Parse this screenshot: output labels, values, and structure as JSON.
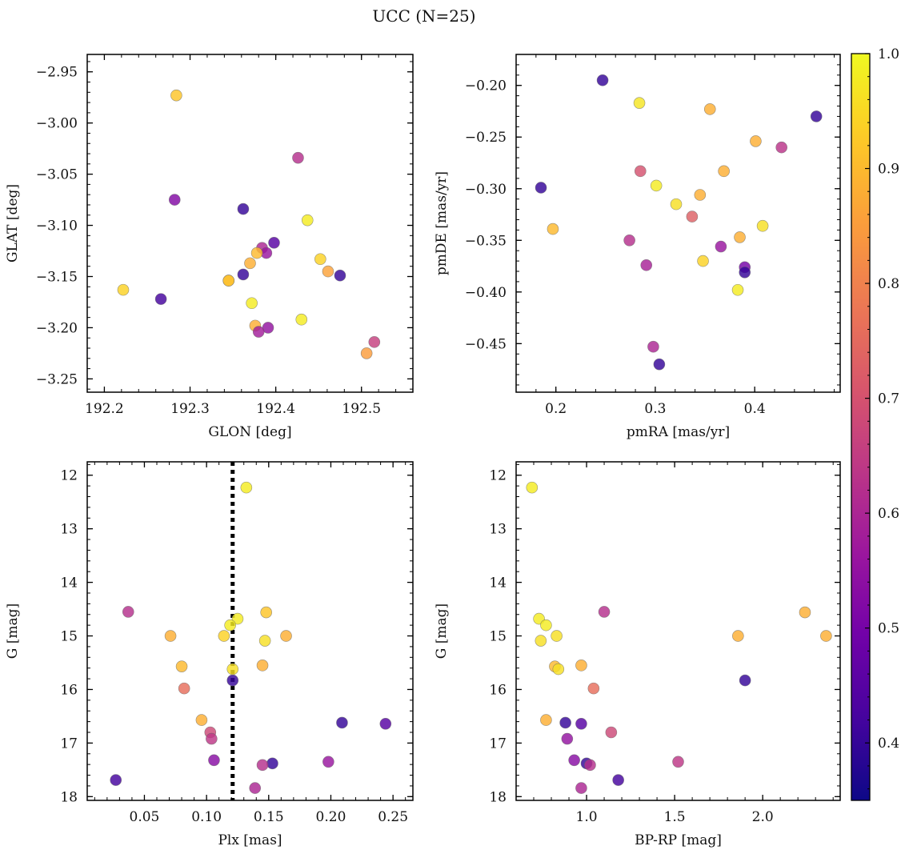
{
  "figure": {
    "title": "UCC (N=25)",
    "cmap": [
      "#0d0887",
      "#46039f",
      "#7201a8",
      "#9c179e",
      "#bd3786",
      "#d8576b",
      "#ed7953",
      "#fb9f3a",
      "#fdca26",
      "#f0f921"
    ]
  },
  "colorbar": {
    "vmin": 0.35,
    "vmax": 1.0,
    "ticks": [
      0.4,
      0.5,
      0.6,
      0.7,
      0.8,
      0.9,
      1.0
    ],
    "tick_labels": [
      "0.4",
      "0.5",
      "0.6",
      "0.7",
      "0.8",
      "0.9",
      "1.0"
    ]
  },
  "chart_data": [
    {
      "type": "scatter",
      "xlabel": "GLON [deg]",
      "ylabel": "GLAT [deg]",
      "xlim": [
        192.18,
        192.56
      ],
      "ylim": [
        -3.263,
        -2.933
      ],
      "xticks": [
        192.2,
        192.3,
        192.4,
        192.5
      ],
      "xtick_labels": [
        "192.2",
        "192.3",
        "192.4",
        "192.5"
      ],
      "yticks": [
        -3.25,
        -3.2,
        -3.15,
        -3.1,
        -3.05,
        -3.0,
        -2.95
      ],
      "ytick_labels": [
        "−3.25",
        "−3.20",
        "−3.15",
        "−3.10",
        "−3.05",
        "−3.00",
        "−2.95"
      ],
      "invert_y": false,
      "points": [
        {
          "x": 192.284,
          "y": -2.973,
          "c": 0.92
        },
        {
          "x": 192.426,
          "y": -3.034,
          "c": 0.62
        },
        {
          "x": 192.282,
          "y": -3.075,
          "c": 0.52
        },
        {
          "x": 192.362,
          "y": -3.084,
          "c": 0.4
        },
        {
          "x": 192.437,
          "y": -3.095,
          "c": 0.98
        },
        {
          "x": 192.398,
          "y": -3.117,
          "c": 0.45
        },
        {
          "x": 192.384,
          "y": -3.122,
          "c": 0.6
        },
        {
          "x": 192.389,
          "y": -3.127,
          "c": 0.56
        },
        {
          "x": 192.378,
          "y": -3.127,
          "c": 0.9
        },
        {
          "x": 192.452,
          "y": -3.133,
          "c": 0.94
        },
        {
          "x": 192.37,
          "y": -3.137,
          "c": 0.88
        },
        {
          "x": 192.461,
          "y": -3.145,
          "c": 0.86
        },
        {
          "x": 192.362,
          "y": -3.148,
          "c": 0.4
        },
        {
          "x": 192.475,
          "y": -3.149,
          "c": 0.4
        },
        {
          "x": 192.345,
          "y": -3.154,
          "c": 0.96
        },
        {
          "x": 192.345,
          "y": -3.154,
          "c": 0.9
        },
        {
          "x": 192.222,
          "y": -3.163,
          "c": 0.94
        },
        {
          "x": 192.266,
          "y": -3.172,
          "c": 0.42
        },
        {
          "x": 192.372,
          "y": -3.176,
          "c": 0.98
        },
        {
          "x": 192.43,
          "y": -3.192,
          "c": 0.98
        },
        {
          "x": 192.376,
          "y": -3.198,
          "c": 0.88
        },
        {
          "x": 192.391,
          "y": -3.2,
          "c": 0.55
        },
        {
          "x": 192.38,
          "y": -3.204,
          "c": 0.58
        },
        {
          "x": 192.515,
          "y": -3.214,
          "c": 0.66
        },
        {
          "x": 192.506,
          "y": -3.225,
          "c": 0.85
        }
      ]
    },
    {
      "type": "scatter",
      "xlabel": "pmRA [mas/yr]",
      "ylabel": "pmDE [mas/yr]",
      "xlim": [
        0.16,
        0.486
      ],
      "ylim": [
        -0.497,
        -0.17
      ],
      "xticks": [
        0.2,
        0.3,
        0.4
      ],
      "xtick_labels": [
        "0.2",
        "0.3",
        "0.4"
      ],
      "yticks": [
        -0.45,
        -0.4,
        -0.35,
        -0.3,
        -0.25,
        -0.2
      ],
      "ytick_labels": [
        "−0.45",
        "−0.40",
        "−0.35",
        "−0.30",
        "−0.25",
        "−0.20"
      ],
      "invert_y": false,
      "points": [
        {
          "x": 0.247,
          "y": -0.195,
          "c": 0.4
        },
        {
          "x": 0.284,
          "y": -0.217,
          "c": 0.97
        },
        {
          "x": 0.355,
          "y": -0.223,
          "c": 0.88
        },
        {
          "x": 0.462,
          "y": -0.23,
          "c": 0.4
        },
        {
          "x": 0.401,
          "y": -0.254,
          "c": 0.88
        },
        {
          "x": 0.427,
          "y": -0.26,
          "c": 0.63
        },
        {
          "x": 0.285,
          "y": -0.283,
          "c": 0.7
        },
        {
          "x": 0.369,
          "y": -0.283,
          "c": 0.88
        },
        {
          "x": 0.301,
          "y": -0.297,
          "c": 0.98
        },
        {
          "x": 0.185,
          "y": -0.299,
          "c": 0.4
        },
        {
          "x": 0.345,
          "y": -0.306,
          "c": 0.88
        },
        {
          "x": 0.321,
          "y": -0.315,
          "c": 0.96
        },
        {
          "x": 0.337,
          "y": -0.327,
          "c": 0.73
        },
        {
          "x": 0.408,
          "y": -0.336,
          "c": 0.96
        },
        {
          "x": 0.197,
          "y": -0.339,
          "c": 0.9
        },
        {
          "x": 0.385,
          "y": -0.347,
          "c": 0.88
        },
        {
          "x": 0.274,
          "y": -0.35,
          "c": 0.62
        },
        {
          "x": 0.366,
          "y": -0.356,
          "c": 0.56
        },
        {
          "x": 0.348,
          "y": -0.37,
          "c": 0.94
        },
        {
          "x": 0.291,
          "y": -0.374,
          "c": 0.59
        },
        {
          "x": 0.39,
          "y": -0.376,
          "c": 0.5
        },
        {
          "x": 0.39,
          "y": -0.381,
          "c": 0.4
        },
        {
          "x": 0.383,
          "y": -0.398,
          "c": 0.98
        },
        {
          "x": 0.298,
          "y": -0.453,
          "c": 0.6
        },
        {
          "x": 0.304,
          "y": -0.47,
          "c": 0.4
        }
      ]
    },
    {
      "type": "scatter",
      "xlabel": "Plx [mas]",
      "ylabel": "G [mag]",
      "xlim": [
        0.004,
        0.266
      ],
      "ylim": [
        18.07,
        11.75
      ],
      "xticks": [
        0.05,
        0.1,
        0.15,
        0.2,
        0.25
      ],
      "xtick_labels": [
        "0.05",
        "0.10",
        "0.15",
        "0.20",
        "0.25"
      ],
      "yticks": [
        12,
        13,
        14,
        15,
        16,
        17,
        18
      ],
      "ytick_labels": [
        "12",
        "13",
        "14",
        "15",
        "16",
        "17",
        "18"
      ],
      "invert_y": true,
      "vline": 0.121,
      "points": [
        {
          "x": 0.132,
          "y": 12.23,
          "c": 0.98
        },
        {
          "x": 0.037,
          "y": 14.55,
          "c": 0.62
        },
        {
          "x": 0.125,
          "y": 14.68,
          "c": 0.98
        },
        {
          "x": 0.148,
          "y": 14.56,
          "c": 0.92
        },
        {
          "x": 0.119,
          "y": 14.8,
          "c": 0.98
        },
        {
          "x": 0.071,
          "y": 15.0,
          "c": 0.88
        },
        {
          "x": 0.114,
          "y": 15.0,
          "c": 0.94
        },
        {
          "x": 0.164,
          "y": 15.0,
          "c": 0.88
        },
        {
          "x": 0.147,
          "y": 15.09,
          "c": 0.96
        },
        {
          "x": 0.08,
          "y": 15.57,
          "c": 0.9
        },
        {
          "x": 0.145,
          "y": 15.55,
          "c": 0.88
        },
        {
          "x": 0.121,
          "y": 15.62,
          "c": 0.96
        },
        {
          "x": 0.121,
          "y": 15.83,
          "c": 0.4
        },
        {
          "x": 0.082,
          "y": 15.98,
          "c": 0.76
        },
        {
          "x": 0.096,
          "y": 16.57,
          "c": 0.88
        },
        {
          "x": 0.209,
          "y": 16.62,
          "c": 0.4
        },
        {
          "x": 0.244,
          "y": 16.64,
          "c": 0.45
        },
        {
          "x": 0.103,
          "y": 16.8,
          "c": 0.68
        },
        {
          "x": 0.104,
          "y": 16.92,
          "c": 0.64
        },
        {
          "x": 0.106,
          "y": 17.32,
          "c": 0.53
        },
        {
          "x": 0.198,
          "y": 17.35,
          "c": 0.56
        },
        {
          "x": 0.153,
          "y": 17.38,
          "c": 0.4
        },
        {
          "x": 0.145,
          "y": 17.41,
          "c": 0.62
        },
        {
          "x": 0.027,
          "y": 17.69,
          "c": 0.42
        },
        {
          "x": 0.139,
          "y": 17.84,
          "c": 0.6
        }
      ]
    },
    {
      "type": "scatter",
      "xlabel": "BP-RP [mag]",
      "ylabel": "G [mag]",
      "xlim": [
        0.6,
        2.44
      ],
      "ylim": [
        18.07,
        11.75
      ],
      "xticks": [
        1.0,
        1.5,
        2.0
      ],
      "xtick_labels": [
        "1.0",
        "1.5",
        "2.0"
      ],
      "yticks": [
        12,
        13,
        14,
        15,
        16,
        17,
        18
      ],
      "ytick_labels": [
        "12",
        "13",
        "14",
        "15",
        "16",
        "17",
        "18"
      ],
      "invert_y": true,
      "points": [
        {
          "x": 0.69,
          "y": 12.23,
          "c": 0.98
        },
        {
          "x": 0.73,
          "y": 14.68,
          "c": 0.98
        },
        {
          "x": 0.77,
          "y": 14.8,
          "c": 0.98
        },
        {
          "x": 1.1,
          "y": 14.55,
          "c": 0.62
        },
        {
          "x": 2.24,
          "y": 14.56,
          "c": 0.88
        },
        {
          "x": 0.74,
          "y": 15.09,
          "c": 0.96
        },
        {
          "x": 0.83,
          "y": 15.0,
          "c": 0.96
        },
        {
          "x": 1.86,
          "y": 15.0,
          "c": 0.88
        },
        {
          "x": 2.36,
          "y": 15.0,
          "c": 0.88
        },
        {
          "x": 0.82,
          "y": 15.57,
          "c": 0.9
        },
        {
          "x": 0.84,
          "y": 15.62,
          "c": 0.96
        },
        {
          "x": 0.97,
          "y": 15.55,
          "c": 0.88
        },
        {
          "x": 1.9,
          "y": 15.83,
          "c": 0.4
        },
        {
          "x": 1.04,
          "y": 15.98,
          "c": 0.76
        },
        {
          "x": 0.77,
          "y": 16.57,
          "c": 0.88
        },
        {
          "x": 0.88,
          "y": 16.62,
          "c": 0.4
        },
        {
          "x": 0.97,
          "y": 16.64,
          "c": 0.45
        },
        {
          "x": 1.14,
          "y": 16.8,
          "c": 0.68
        },
        {
          "x": 0.89,
          "y": 16.92,
          "c": 0.55
        },
        {
          "x": 0.93,
          "y": 17.32,
          "c": 0.53
        },
        {
          "x": 1.52,
          "y": 17.35,
          "c": 0.64
        },
        {
          "x": 1.0,
          "y": 17.38,
          "c": 0.4
        },
        {
          "x": 1.02,
          "y": 17.41,
          "c": 0.62
        },
        {
          "x": 1.18,
          "y": 17.69,
          "c": 0.42
        },
        {
          "x": 0.97,
          "y": 17.84,
          "c": 0.6
        }
      ]
    }
  ]
}
